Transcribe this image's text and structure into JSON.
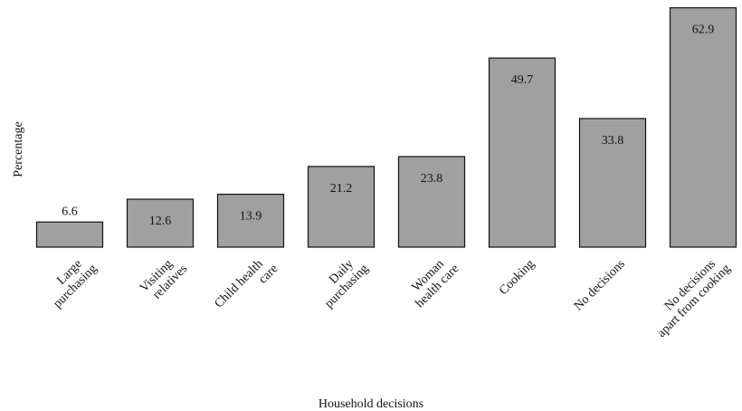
{
  "chart_data": {
    "type": "bar",
    "x_label": "Household decisions",
    "y_label": "Percentage",
    "categories": [
      "Large\npurchasing",
      "Visiting\nrelatives",
      "Child health\ncare",
      "Daily\npurchasing",
      "Woman\nhealth care",
      "Cooking",
      "No decisions",
      "No decisions\napart from cooking"
    ],
    "values": [
      6.6,
      12.6,
      13.9,
      21.2,
      23.8,
      49.7,
      33.8,
      62.9
    ],
    "color": "#a0a0a0",
    "ylim": [
      0,
      64
    ]
  }
}
